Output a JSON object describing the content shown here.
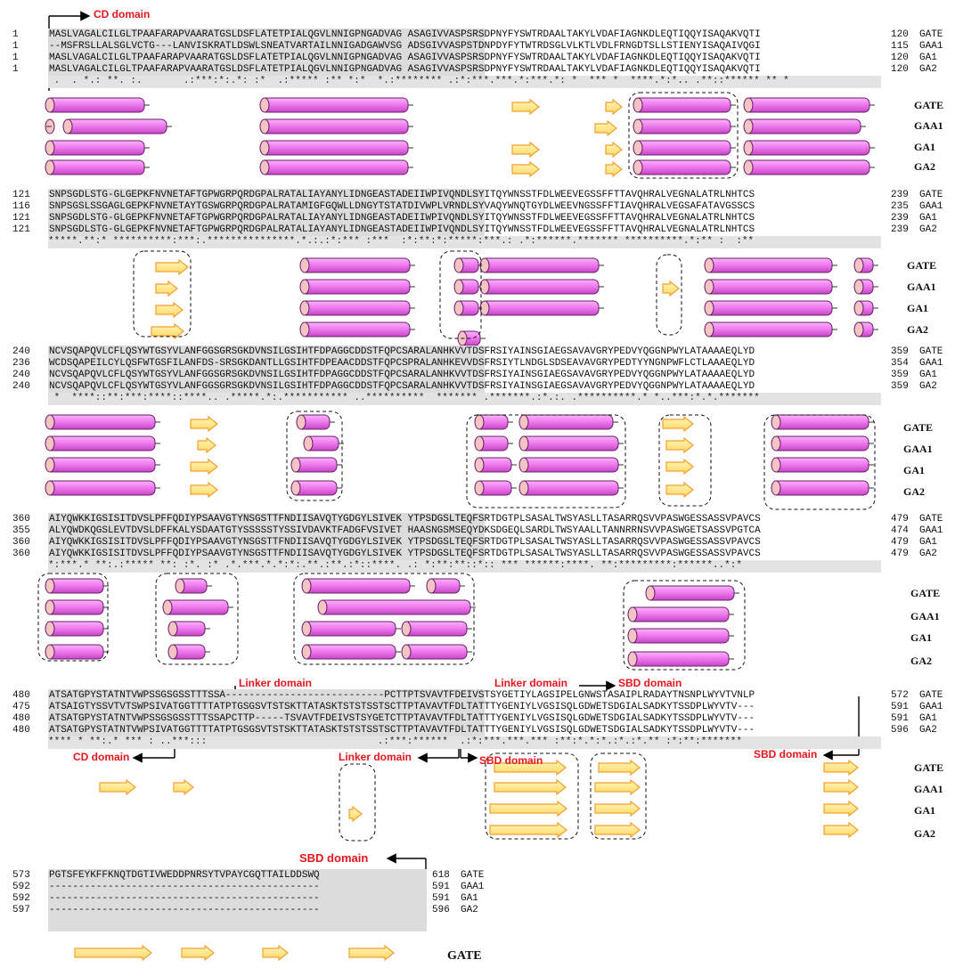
{
  "domains": {
    "cd_top": "CD domain",
    "linker_1": "Linker domain",
    "linker_2": "Linker domain",
    "linker_3": "Linker domain",
    "sbd_1": "SBD domain",
    "sbd_2": "SBD domain",
    "sbd_3": "SBD domain",
    "sbd_4": "SBD domain",
    "cd_bottom": "CD domain"
  },
  "colors": {
    "helix_fill": "#f07cf0",
    "helix_cap": "#f4c4c4",
    "strand_fill": "#ffee88",
    "strand_stroke": "#f0a030",
    "domain_text": "#e8161c",
    "conservation_bg": "#e3e3e3"
  },
  "block1": {
    "seqs": [
      {
        "start": "1",
        "seq": "MASLVAGALCILGLTPAAFARAPVAARATGSLDSFLATETPIALQGVLNNIGPNGADVAG ASAGIVVASPSRSDPNYFYSWTRDAALTAKYLVDAFIAGNKDLEQTIQQYISAQAKVQTI",
        "end": "120",
        "name": "GATE"
      },
      {
        "start": "1",
        "seq": "--MSFRSLLALSGLVCTG---LANVISKRATLDSWLSNEATVARTAILNNIGADGAWVSG ADSGIVVASPSTDNPDYFYTWTRDSGLVLKTLVDLFRNGDTSLLSTIENYISAQAIVQGI",
        "end": "115",
        "name": "GAA1"
      },
      {
        "start": "1",
        "seq": "MASLVAGALCILGLTPAAFARAPVAARATGSLDSFLATETPIALQGVLNNIGPNGADVAG ASAGIVVASPSRSDPNYFYSWTRDAALTAKYLVDAFIAGNKDLEQTIQQYISAQAKVQTI",
        "end": "120",
        "name": "GA1"
      },
      {
        "start": "1",
        "seq": "MASLVAGALCILGLTPAAFARAPVAARATGSLDSFLATETPIALQGVLNNIGPNGADVAG ASAGIVVASPSRSDPNYFYSWTRDAALTAKYLVDAFIAGNKDLEQTIQQYISAQAKVQTI",
        "end": "120",
        "name": "GA2"
      }
    ],
    "cons": " .  . *.: **. :.       .:***:*:.*: :*  .:***** :** *:*  *.:******** .:*:***.***.*:***.*: *  *** *  ****.*:*.. .**::****** ** *"
  },
  "block2": {
    "seqs": [
      {
        "start": "121",
        "seq": "SNPSGDLSTG-GLGEPKFNVNETAFTGPWGRPQRDGPALRATALIAYANYLIDNGEASTADEIIWPIVQNDLSYITQYWNSSTFDLWEEVEGSSFFTTAVQHRALVEGNALATRLNHTCS",
        "end": "239",
        "name": "GATE"
      },
      {
        "start": "116",
        "seq": "SNPSGSLSSGAGLGEPKFNVNETAYTGSWGRPQRDGPALRATAMIGFGQWLLDNGYTSTATDIVWPLVRNDLSYVAQYWNQTGYDLWEEVNGSSFFTIAVQHRALVEGSAFATAVGSSCS",
        "end": "235",
        "name": "GAA1"
      },
      {
        "start": "121",
        "seq": "SNPSGDLSTG-GLGEPKFNVNETAFTGPWGRPQRDGPALRATALIAYANYLIDNGEASTADEIIWPIVQNDLSYITQYWNSSTFDLWEEVEGSSFFTTAVQHRALVEGNALATRLNHTCS",
        "end": "239",
        "name": "GA1"
      },
      {
        "start": "121",
        "seq": "SNPSGDLSTG-GLGEPKFNVNETAFTGPWGRPQRDGPALRATALIAYANYLIDNGEASTADEIIWPIVQNDLSYITQYWNSSTFDLWEEVEGSSFFTTAVQHRALVEGNALATRLNHTCS",
        "end": "239",
        "name": "GA2"
      }
    ],
    "cons": "*****.**:* **********:***:.***************.*.:.:*:*** :***  :*:**:*:*****:***.: .*:******.******* **********.*:** :  :**"
  },
  "block3": {
    "seqs": [
      {
        "start": "240",
        "seq": "NCVSQAPQVLCFLQSYWTGSYVLANFGGSGRSGKDVNSILGSIHTFDPAGGCDDSTFQPCSARALANHKVVTDSFRSIYAINSGIAEGSAVAVGRYPEDVYQGGNPWYLATAAAAEQLYD",
        "end": "359",
        "name": "GATE"
      },
      {
        "start": "236",
        "seq": "WCDSQAPEILCYLQSFWTGSFILANFDS-SRSGKDANTLLGSIHTFDPEAACDDSTFQPCSPRALANHKEVVDSFRSIYTLNDGLSDSEAVAVGRYPEDTYYNGNPWFLCTLAAAEQLYD",
        "end": "354",
        "name": "GAA1"
      },
      {
        "start": "240",
        "seq": "NCVSQAPQVLCFLQSYWTGSYVLANFGGSGRSGKDVNSILGSIHTFDPAGGCDDSTFQPCSARALANHKVVTDSFRSIYAINSGIAEGSAVAVGRYPEDVYQGGNPWYLATAAAAEQLYD",
        "end": "359",
        "name": "GA1"
      },
      {
        "start": "240",
        "seq": "NCVSQAPQVLCFLQSYWTGSYVLANFGGSGRSGKDVNSILGSIHTFDPAGGCDDSTFQPCSARALANHKVVTDSFRSIYAINSGIAEGSAVAVGRYPEDVYQGGNPWYLATAAAAEQLYD",
        "end": "359",
        "name": "GA2"
      }
    ],
    "cons": " *  ****::**:***:****::****.. .*****.*:.*********** ..**********  ******* .*******.:*.:. .**********.* *..***:*.*.*******"
  },
  "block4": {
    "seqs": [
      {
        "start": "360",
        "seq": "AIYQWKKIGSISITDVSLPFFQDIYPSAAVGTYNSGSTTFNDIISAVQTYGDGYLSIVEK YTPSDGSLTEQFSRTDGTPLSASALTWSYASLLTASARRQSVVPASWGESSASSVPAVCS",
        "end": "479",
        "name": "GATE"
      },
      {
        "start": "355",
        "seq": "ALYQWDKQGSLEVTDVSLDFFKALYSDAATGTYSSSSSTYSSIVDAVKTFADGFVSIVET HAASNGSMSEQYDKSDGEQLSARDLTWSYAALLTANNRRNSVVPASWGETSASSVPGTCA",
        "end": "474",
        "name": "GAA1"
      },
      {
        "start": "360",
        "seq": "AIYQWKKIGSISITDVSLPFFQDIYPSAAVGTYNSGSTTFNDIISAVQTYGDGYLSIVEK YTPSDGSLTEQFSRTDGTPLSASALTWSYASLLTASARRQSVVPASWGESSASSVPAVCS",
        "end": "479",
        "name": "GA1"
      },
      {
        "start": "360",
        "seq": "AIYQWKKIGSISITDVSLPFFQDIYPSAAVGTYNSGSTTFNDIISAVQTYGDGYLSIVEK YTPSDGSLTEQFSRTDGTPLSASALTWSYASLLTASARRQSVVPASWGESSASSVPAVCS",
        "end": "479",
        "name": "GA2"
      }
    ],
    "cons": "*:***.* **:.:***** **: :*. :* .*.***.*.*:*:.**.:**.:*::****. .: *:**:**::*:: *** ******:****. **:*********:******..*:*"
  },
  "block5": {
    "seqs": [
      {
        "start": "480",
        "seq": "ATSATGPYSTATNTVWPSSGSGSSTTTSSA---------------------------PCTTPTSVAVTFDEIVSTSYGETIYLAGSIPELGNWSTASAIPLRADAYTNSNPLWYVTVNLP",
        "end": "572",
        "name": "GATE"
      },
      {
        "start": "475",
        "seq": "ATSAIGTYSSVTVTSWPSIVATGGTTTTATPTGSGSVTSTSKTTATASKTSTSTSSTSCTTPTAVAVTFDLTATTTYGENIYLVGSISQLGDWETSDGIALSADKYTSSDPLWYVTV---",
        "end": "591",
        "name": "GAA1"
      },
      {
        "start": "480",
        "seq": "ATSATGPYSTATNTVWPSSGSGSSTTTSSAPCTTP-----TSVAVTFDEIVSTSYGETCTTPTAVAVTFDLTATTTYGENIYLVGSISQLGDWETSDGIALSADKYTSSDPLWYVTV---",
        "end": "591",
        "name": "GA1"
      },
      {
        "start": "480",
        "seq": "ATSATGPYSTATNTVWPSIVATGGTTTTATPTGSGSVTSTSKTTATASKTSTSTSSTSCTTPTAVAVTFDLTATTTYGENIYLVGSISQLGDWETSDGIALSADKYTSSDPLWYVTV---",
        "end": "596",
        "name": "GA2"
      }
    ],
    "cons": "**** * **:.* *** : ..***:::                             .:***:******  .:*:***.***.*** :**:*.*:*.:*.:*.** :*:**:*******"
  },
  "block6": {
    "seqs": [
      {
        "start": "573",
        "seq": "PGTSFEYKFFKNQTDGTIVWEDDPNRSYTVPAYCGQTTAILDDSWQ",
        "end": "618",
        "name": "GATE"
      },
      {
        "start": "592",
        "seq": "----------------------------------------------",
        "end": "591",
        "name": "GAA1"
      },
      {
        "start": "592",
        "seq": "----------------------------------------------",
        "end": "591",
        "name": "GA1"
      },
      {
        "start": "597",
        "seq": "----------------------------------------------",
        "end": "596",
        "name": "GA2"
      }
    ]
  },
  "structure_labels": [
    "GATE",
    "GAA1",
    "GA1",
    "GA2"
  ],
  "final_label": "GATE"
}
